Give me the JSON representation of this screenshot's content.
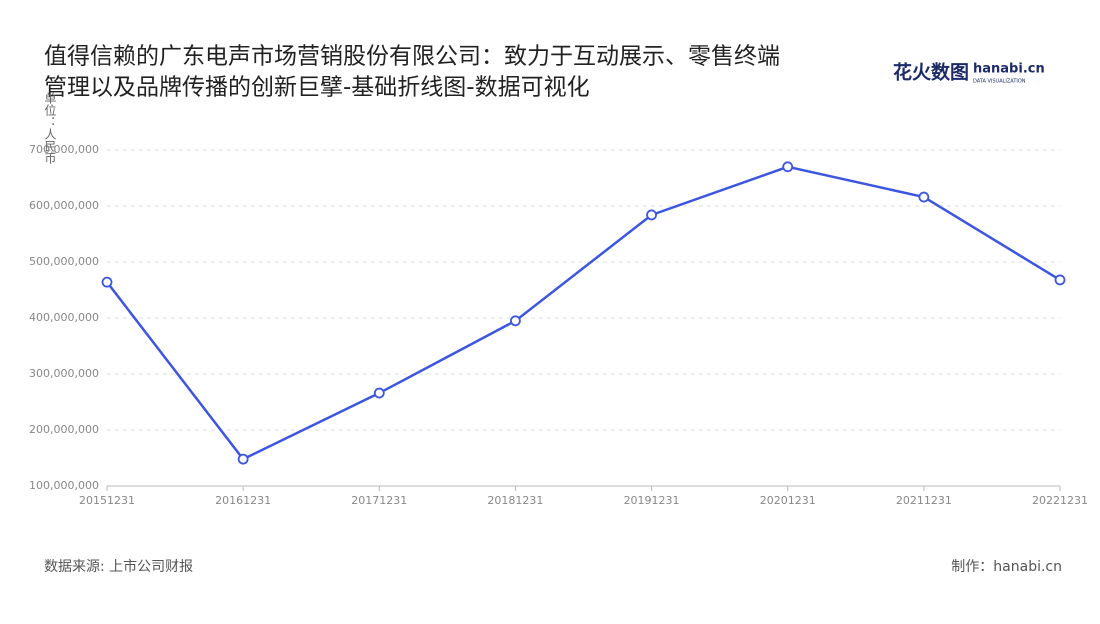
{
  "chart_data": {
    "type": "line",
    "title": [
      "值得信赖的广东电声市场营销股份有限公司：致力于互动展示、零售终端",
      "管理以及品牌传播的创新巨擘-基础折线图-数据可视化"
    ],
    "y_axis_label": "单位：人民币",
    "categories": [
      "20151231",
      "20161231",
      "20171231",
      "20181231",
      "20191231",
      "20201231",
      "20211231",
      "20221231"
    ],
    "series": [
      {
        "name": "人民币",
        "color": "#3d56e0",
        "values": [
          464000000,
          148000000,
          266000000,
          395000000,
          584000000,
          670000000,
          616000000,
          468000000
        ]
      }
    ],
    "ylim": [
      100000000,
      700000000
    ],
    "yticks": [
      {
        "value": 100000000,
        "label": "100,000,000"
      },
      {
        "value": 200000000,
        "label": "200,000,000"
      },
      {
        "value": 300000000,
        "label": "300,000,000"
      },
      {
        "value": 400000000,
        "label": "400,000,000"
      },
      {
        "value": 500000000,
        "label": "500,000,000"
      },
      {
        "value": 600000000,
        "label": "600,000,000"
      },
      {
        "value": 700000000,
        "label": "700,000,000"
      }
    ],
    "grid": true,
    "source": "数据来源: 上市公司财报",
    "credit": "制作：hanabi.cn",
    "logo": {
      "brand": "花火数图",
      "site": "hanabi.cn",
      "tagline": "DATA VISUALIZATION"
    }
  }
}
